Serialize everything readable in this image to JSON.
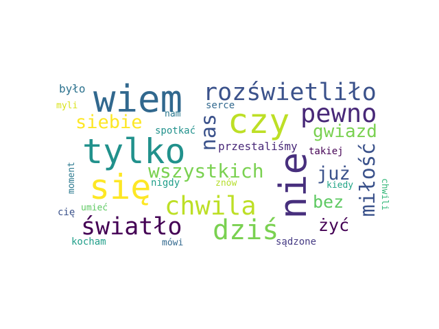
{
  "words": [
    {
      "id": "wiem",
      "text": "wiem",
      "color": "#31688e"
    },
    {
      "id": "rozswietlilo",
      "text": "rozświetliło",
      "color": "#3b528b"
    },
    {
      "id": "czy",
      "text": "czy",
      "color": "#bddf26"
    },
    {
      "id": "pewno",
      "text": "pewno",
      "color": "#482878"
    },
    {
      "id": "siebie",
      "text": "siebie",
      "color": "#fde725"
    },
    {
      "id": "nas",
      "text": "nas",
      "color": "#3b528b"
    },
    {
      "id": "gwiazd",
      "text": "gwiazd",
      "color": "#7ad151"
    },
    {
      "id": "tylko",
      "text": "tylko",
      "color": "#21918c"
    },
    {
      "id": "nie",
      "text": "nie",
      "color": "#472f7d"
    },
    {
      "id": "sie",
      "text": "się",
      "color": "#fde725"
    },
    {
      "id": "wszystkich",
      "text": "wszystkich",
      "color": "#7ad151"
    },
    {
      "id": "juz",
      "text": "już",
      "color": "#3b528b"
    },
    {
      "id": "milosc",
      "text": "miłość",
      "color": "#3b528b"
    },
    {
      "id": "chwila",
      "text": "chwila",
      "color": "#bddf26"
    },
    {
      "id": "bez",
      "text": "bez",
      "color": "#5ec962"
    },
    {
      "id": "swiatlo",
      "text": "światło",
      "color": "#440154"
    },
    {
      "id": "dzis",
      "text": "dziś",
      "color": "#7ad151"
    },
    {
      "id": "zyc",
      "text": "żyć",
      "color": "#440154"
    },
    {
      "id": "bylo",
      "text": "było",
      "color": "#2c728e"
    },
    {
      "id": "myli",
      "text": "myli",
      "color": "#d8e219"
    },
    {
      "id": "serce",
      "text": "serce",
      "color": "#31688e"
    },
    {
      "id": "nam",
      "text": "nam",
      "color": "#2a788e"
    },
    {
      "id": "spotkac",
      "text": "spotkać",
      "color": "#21918c"
    },
    {
      "id": "przestalismy",
      "text": "przestaliśmy",
      "color": "#482878"
    },
    {
      "id": "takiej",
      "text": "takiej",
      "color": "#440154"
    },
    {
      "id": "moment",
      "text": "moment",
      "color": "#2a788e"
    },
    {
      "id": "nigdy",
      "text": "nigdy",
      "color": "#1f9e89"
    },
    {
      "id": "znow",
      "text": "znów",
      "color": "#b5de2b"
    },
    {
      "id": "kiedy",
      "text": "kiedy",
      "color": "#20a486"
    },
    {
      "id": "chwili",
      "text": "chwili",
      "color": "#35b779"
    },
    {
      "id": "umiec",
      "text": "umieć",
      "color": "#5ec962"
    },
    {
      "id": "cie",
      "text": "cię",
      "color": "#3b528b"
    },
    {
      "id": "kocham",
      "text": "kocham",
      "color": "#1f9e89"
    },
    {
      "id": "mowi",
      "text": "mówi",
      "color": "#31688e"
    },
    {
      "id": "sadzone",
      "text": "sądzone",
      "color": "#443983"
    }
  ]
}
